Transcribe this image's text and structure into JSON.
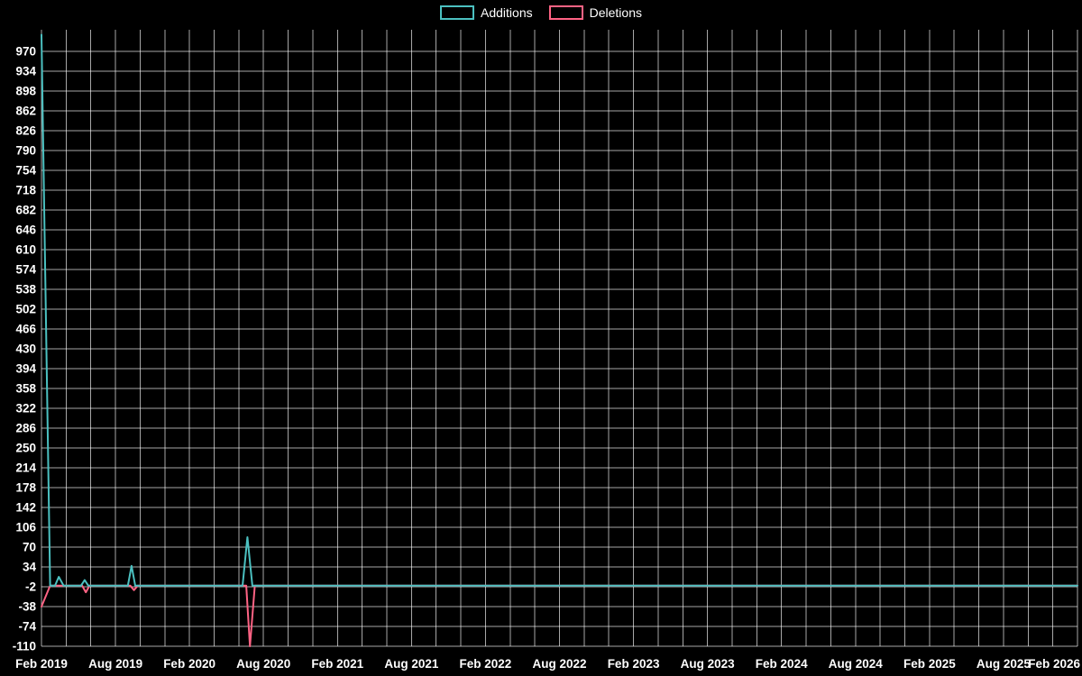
{
  "legend": {
    "items": [
      {
        "label": "Additions",
        "color": "#4bc0c0"
      },
      {
        "label": "Deletions",
        "color": "#ff6384"
      }
    ]
  },
  "chart_data": {
    "type": "line",
    "title": "",
    "background": "#000000",
    "grid": true,
    "grid_color": "rgba(255,255,255,0.65)",
    "legend_position": "top",
    "x_axis": {
      "labels": [
        "Feb 2019",
        "Aug 2019",
        "Feb 2020",
        "Aug 2020",
        "Feb 2021",
        "Aug 2021",
        "Feb 2022",
        "Aug 2022",
        "Feb 2023",
        "Aug 2023",
        "Feb 2024",
        "Aug 2024",
        "Feb 2025",
        "Aug 2025",
        "Feb 2026"
      ],
      "label_interval_months": 6,
      "months_max": 84,
      "grid_interval_months": 2
    },
    "y_axis": {
      "ticks": [
        970,
        934,
        898,
        862,
        826,
        790,
        754,
        718,
        682,
        646,
        610,
        574,
        538,
        502,
        466,
        430,
        394,
        358,
        322,
        286,
        250,
        214,
        178,
        142,
        106,
        70,
        34,
        -2,
        -38,
        -74,
        -110
      ],
      "ylim": [
        -110,
        1009
      ]
    },
    "series": [
      {
        "name": "Additions",
        "color": "#4bc0c0",
        "points": [
          [
            0,
            1000
          ],
          [
            0.7,
            0
          ],
          [
            1.1,
            0
          ],
          [
            1.4,
            16
          ],
          [
            1.8,
            0
          ],
          [
            3.2,
            0
          ],
          [
            3.5,
            10
          ],
          [
            3.8,
            0
          ],
          [
            7.0,
            0
          ],
          [
            7.3,
            36
          ],
          [
            7.6,
            0
          ],
          [
            16.3,
            0
          ],
          [
            16.7,
            88
          ],
          [
            17.1,
            0
          ],
          [
            84,
            0
          ]
        ]
      },
      {
        "name": "Deletions",
        "color": "#ff6384",
        "points": [
          [
            0,
            -38
          ],
          [
            0.7,
            0
          ],
          [
            3.3,
            0
          ],
          [
            3.6,
            -12
          ],
          [
            3.9,
            0
          ],
          [
            7.2,
            0
          ],
          [
            7.5,
            -8
          ],
          [
            7.8,
            0
          ],
          [
            16.6,
            0
          ],
          [
            16.9,
            -110
          ],
          [
            17.3,
            0
          ],
          [
            84,
            0
          ]
        ]
      }
    ]
  }
}
